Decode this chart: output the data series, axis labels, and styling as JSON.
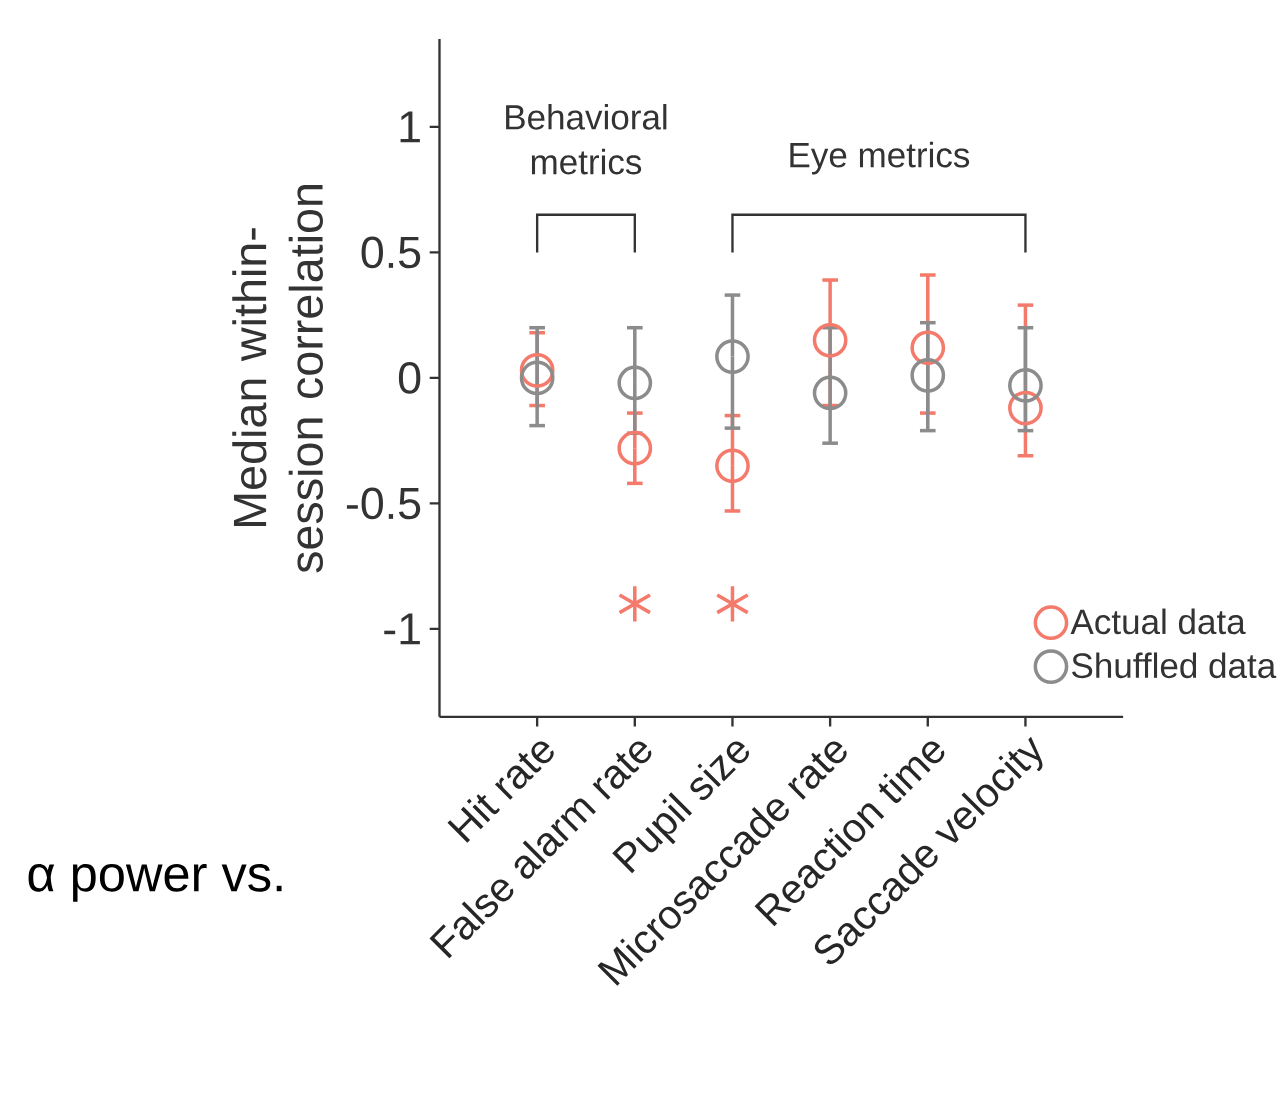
{
  "chart_data": {
    "type": "scatter",
    "ylabel": "Median within-session correlation",
    "categories": [
      "Hit rate",
      "False alarm rate",
      "Pupil size",
      "Microsaccade rate",
      "Reaction time",
      "Saccade velocity"
    ],
    "series": [
      {
        "name": "Actual data",
        "color": "#f47a6b",
        "values": [
          0.03,
          -0.28,
          -0.35,
          0.15,
          0.12,
          -0.12
        ],
        "errors": [
          [
            -0.11,
            0.18
          ],
          [
            -0.42,
            -0.14
          ],
          [
            -0.53,
            -0.15
          ],
          [
            -0.11,
            0.39
          ],
          [
            -0.14,
            0.41
          ],
          [
            -0.31,
            0.29
          ]
        ]
      },
      {
        "name": "Shuffled data",
        "color": "#8c8c8c",
        "values": [
          0,
          -0.02,
          0.085,
          -0.06,
          0.01,
          -0.03
        ],
        "errors": [
          [
            -0.19,
            0.2
          ],
          [
            -0.22,
            0.2
          ],
          [
            -0.2,
            0.33
          ],
          [
            -0.26,
            0.2
          ],
          [
            -0.21,
            0.22
          ],
          [
            -0.21,
            0.2
          ]
        ]
      },
      {
        "color": "#f47a6b",
        "marker": "cross",
        "values": [
          null,
          -0.9,
          -0.9,
          null,
          null,
          null
        ]
      }
    ],
    "ylim": [
      -1.35,
      1.35
    ],
    "yticks": [
      -1,
      -0.5,
      0,
      0.5,
      1
    ],
    "marker": "circle",
    "legend": "bottom right",
    "grid": false,
    "annotations": [
      "Behavioral metrics",
      "Eye metrics",
      "α power vs."
    ]
  }
}
